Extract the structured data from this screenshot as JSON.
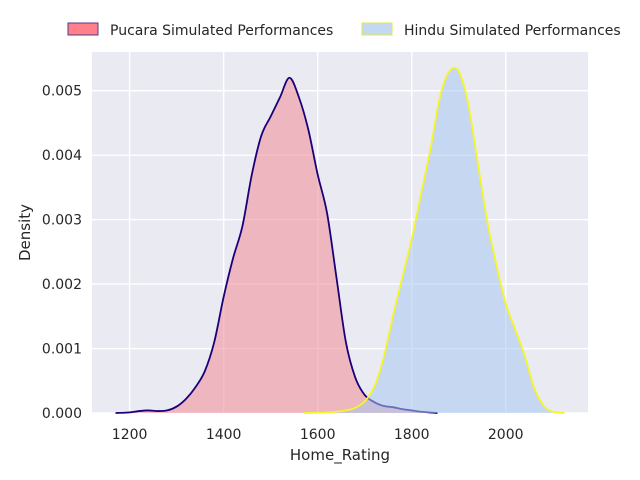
{
  "chart_data": {
    "type": "area",
    "xlabel": "Home_Rating",
    "ylabel": "Density",
    "xlim": [
      1120,
      2175
    ],
    "ylim": [
      0,
      0.0056
    ],
    "xticks": [
      1200,
      1400,
      1600,
      1800,
      2000
    ],
    "xtick_labels": [
      "1200",
      "1400",
      "1600",
      "1800",
      "2000"
    ],
    "yticks": [
      0,
      0.001,
      0.002,
      0.003,
      0.004,
      0.005
    ],
    "ytick_labels": [
      "0.000",
      "0.001",
      "0.002",
      "0.003",
      "0.004",
      "0.005"
    ],
    "grid": true,
    "legend_position": "top",
    "series": [
      {
        "name": "Pucara Simulated Performances",
        "fill": "#f08a96",
        "line": "#1a007a",
        "legend_fill": "#ff7f8a",
        "legend_edge": "#5a3a8a",
        "x": [
          1170,
          1200,
          1220,
          1240,
          1260,
          1280,
          1300,
          1320,
          1340,
          1360,
          1380,
          1400,
          1420,
          1440,
          1460,
          1480,
          1500,
          1520,
          1540,
          1560,
          1580,
          1600,
          1620,
          1640,
          1660,
          1680,
          1700,
          1720,
          1740,
          1760,
          1780,
          1800,
          1820,
          1855
        ],
        "y": [
          0.0,
          1e-05,
          3e-05,
          4e-05,
          3e-05,
          4e-05,
          0.0001,
          0.00022,
          0.0004,
          0.00065,
          0.0011,
          0.0018,
          0.0024,
          0.0029,
          0.0037,
          0.0043,
          0.0046,
          0.0049,
          0.0052,
          0.0049,
          0.0044,
          0.0037,
          0.0031,
          0.0021,
          0.0011,
          0.00055,
          0.00028,
          0.00017,
          0.00011,
          9e-05,
          6e-05,
          4e-05,
          2e-05,
          0.0
        ]
      },
      {
        "name": "Hindu Simulated Performances",
        "fill": "#a8c8f0",
        "line": "#f5f52a",
        "legend_fill": "#c3d9f2",
        "legend_edge": "#e6e64a",
        "x": [
          1570,
          1600,
          1620,
          1640,
          1660,
          1680,
          1700,
          1720,
          1740,
          1760,
          1780,
          1800,
          1820,
          1840,
          1860,
          1880,
          1900,
          1920,
          1940,
          1960,
          1980,
          2000,
          2020,
          2040,
          2060,
          2080,
          2100,
          2125
        ],
        "y": [
          0.0,
          5e-06,
          1e-05,
          2e-05,
          4e-05,
          8e-05,
          0.00018,
          0.0004,
          0.00085,
          0.0015,
          0.0021,
          0.0027,
          0.0034,
          0.0041,
          0.0049,
          0.0053,
          0.0053,
          0.0048,
          0.0039,
          0.003,
          0.0023,
          0.0017,
          0.0013,
          0.0009,
          0.0004,
          0.00012,
          2e-05,
          0.0
        ]
      }
    ]
  }
}
